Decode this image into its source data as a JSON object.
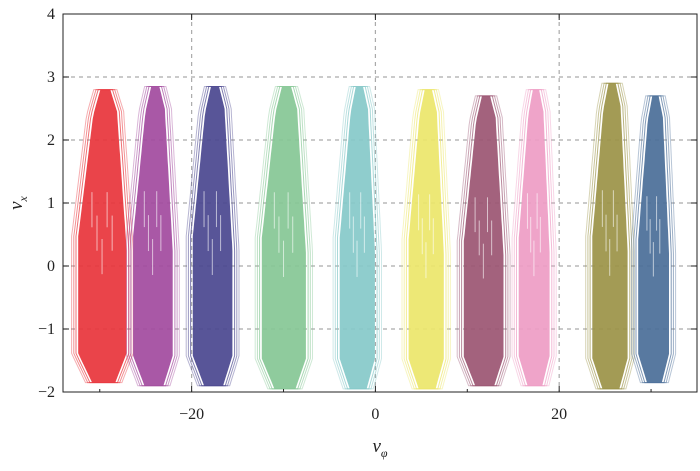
{
  "chart_data": {
    "type": "scatter",
    "title": "",
    "xlabel": "v",
    "xlabel_sub": "φ",
    "ylabel": "v",
    "ylabel_sub": "x",
    "xlim": [
      -34,
      35
    ],
    "ylim": [
      -2,
      4
    ],
    "xticks": [
      -20,
      0,
      20
    ],
    "xtick_labels": [
      "−20",
      "0",
      "20"
    ],
    "yticks": [
      -2,
      -1,
      0,
      1,
      2,
      3,
      4
    ],
    "ytick_labels": [
      "−2",
      "−1",
      "0",
      "1",
      "2",
      "3",
      "4"
    ],
    "grid": true,
    "legend": "none",
    "clusters": [
      {
        "center_x": -30,
        "x_min": -32.5,
        "x_max": -27.0,
        "y_min": -1.85,
        "y_max": 2.8,
        "color": "#e8343b"
      },
      {
        "center_x": -24,
        "x_min": -26.5,
        "x_min_note": "",
        "x_max": -22.0,
        "y_min": -1.9,
        "y_max": 2.85,
        "color": "#a24a9e"
      },
      {
        "center_x": -18,
        "x_min": -20.0,
        "x_max": -15.5,
        "y_min": -1.9,
        "y_max": 2.85,
        "color": "#4a478f"
      },
      {
        "center_x": -10,
        "x_min": -12.5,
        "x_max": -7.5,
        "y_min": -1.95,
        "y_max": 2.85,
        "color": "#86c795"
      },
      {
        "center_x": -2,
        "x_min": -4.0,
        "x_max": 0.0,
        "y_min": -1.95,
        "y_max": 2.85,
        "color": "#86c9c9"
      },
      {
        "center_x": 5,
        "x_min": 3.5,
        "x_max": 7.5,
        "y_min": -1.95,
        "y_max": 2.8,
        "color": "#ece66a"
      },
      {
        "center_x": 12,
        "x_min": 9.5,
        "x_max": 14.0,
        "y_min": -1.9,
        "y_max": 2.7,
        "color": "#9b5572"
      },
      {
        "center_x": 18,
        "x_min": 15.5,
        "x_max": 19.0,
        "y_min": -1.9,
        "y_max": 2.8,
        "color": "#ee9cc4"
      },
      {
        "center_x": 25,
        "x_min": 23.5,
        "x_max": 27.5,
        "y_min": -1.95,
        "y_max": 2.9,
        "color": "#9b9347"
      },
      {
        "center_x": 31,
        "x_min": 28.5,
        "x_max": 32.0,
        "y_min": -1.85,
        "y_max": 2.7,
        "color": "#4a6e98"
      }
    ]
  }
}
